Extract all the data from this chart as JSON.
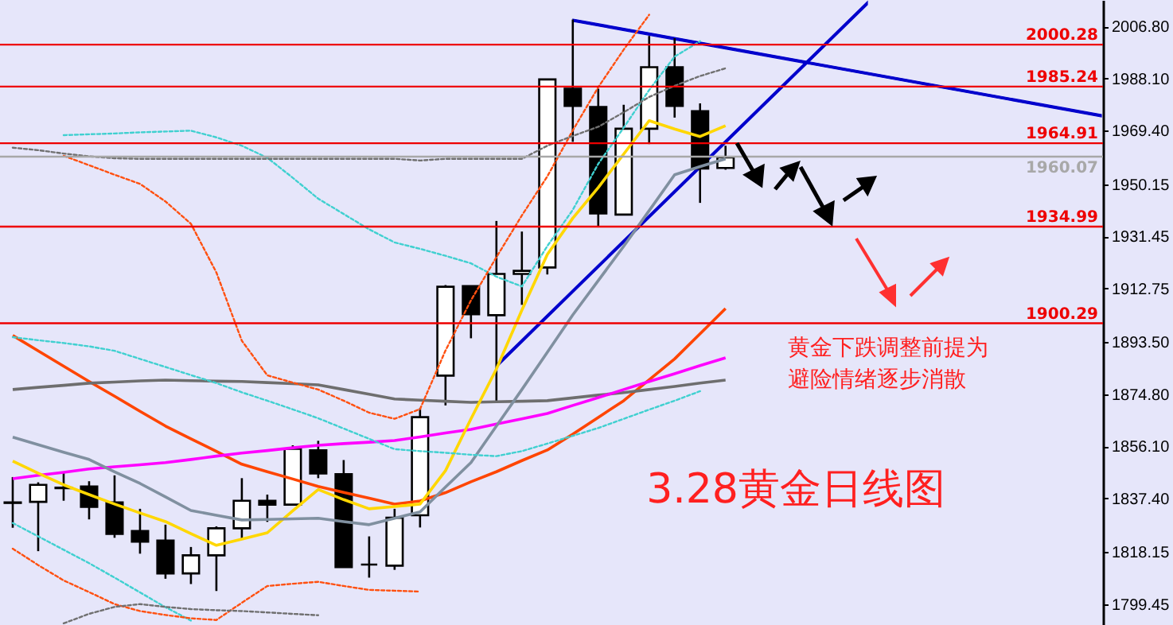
{
  "chart_data": {
    "type": "candlestick",
    "title": "3.28黄金日线图",
    "annotations": [
      "黄金下跌调整前提为避险情绪逐步消散"
    ],
    "categories": [
      null,
      null,
      null,
      null,
      null,
      null,
      null,
      null,
      null,
      null,
      null,
      null,
      null,
      null,
      null,
      null,
      null,
      null,
      null,
      null,
      null,
      null,
      null,
      null,
      null,
      null,
      null,
      null,
      null
    ],
    "ohlc": [
      [
        1835.8,
        1845.1,
        1826.9,
        1836.0
      ],
      [
        1836.2,
        1843.2,
        1818.5,
        1842.3
      ],
      [
        1841.1,
        1847.0,
        1836.6,
        1841.3
      ],
      [
        1841.7,
        1843.6,
        1829.9,
        1834.4
      ],
      [
        1836.0,
        1845.7,
        1823.3,
        1824.7
      ],
      [
        1825.7,
        1833.7,
        1817.6,
        1821.9
      ],
      [
        1822.3,
        1828.0,
        1808.6,
        1810.5
      ],
      [
        1810.5,
        1820.0,
        1806.7,
        1817.0
      ],
      [
        1817.0,
        1827.4,
        1804.2,
        1826.7
      ],
      [
        1826.7,
        1844.7,
        1822.9,
        1836.6
      ],
      [
        1836.6,
        1838.8,
        1829.0,
        1835.2
      ],
      [
        1835.2,
        1856.5,
        1835.2,
        1855.2
      ],
      [
        1854.7,
        1858.1,
        1844.7,
        1846.4
      ],
      [
        1846.1,
        1851.2,
        1812.8,
        1812.8
      ],
      [
        1813.7,
        1823.8,
        1809.0,
        1813.7
      ],
      [
        1813.3,
        1833.7,
        1811.8,
        1830.5
      ],
      [
        1831.4,
        1869.8,
        1827.0,
        1866.6
      ],
      [
        1881.5,
        1914.0,
        1870.8,
        1913.4
      ],
      [
        1913.6,
        1913.6,
        1894.9,
        1903.5
      ],
      [
        1903.2,
        1937.0,
        1871.8,
        1918.0
      ],
      [
        1918.0,
        1933.2,
        1906.9,
        1919.1
      ],
      [
        1920.3,
        1987.8,
        1917.8,
        1987.8
      ],
      [
        1984.5,
        2009.3,
        1965.4,
        1978.3
      ],
      [
        1977.9,
        1984.5,
        1934.9,
        1939.7
      ],
      [
        1939.3,
        1978.7,
        1939.3,
        1970.1
      ],
      [
        1970.1,
        2003.4,
        1964.6,
        1992.2
      ],
      [
        1992.2,
        2002.6,
        1974.1,
        1978.3
      ],
      [
        1976.4,
        1979.2,
        1943.5,
        1955.8
      ],
      [
        1956.0,
        1964.0,
        1955.4,
        1959.8
      ]
    ],
    "series": [
      {
        "type": "line",
        "color": "#ff4500",
        "line_style": "solid",
        "values": [
          1895.9,
          1890.4,
          1884.9,
          1879.4,
          1874.1,
          1868.7,
          1863.4,
          1858.8,
          1854.3,
          1849.7,
          1847.0,
          1844.4,
          1841.7,
          1839.6,
          1837.5,
          1835.4,
          1836.5,
          1839.5,
          1843.4,
          1847.0,
          1851.0,
          1854.8,
          1860.5,
          1866.5,
          1872.5,
          1880.0,
          1887.5,
          1896.5,
          1905.6
        ]
      },
      {
        "type": "line",
        "color": "#6e6e6e",
        "line_style": "solid",
        "values": [
          1876.5,
          1877.3,
          1878.0,
          1878.8,
          1879.2,
          1879.6,
          1879.9,
          1879.7,
          1879.5,
          1879.4,
          1879.0,
          1878.6,
          1878.2,
          1876.5,
          1874.8,
          1873.1,
          1872.7,
          1872.3,
          1871.9,
          1872.1,
          1872.3,
          1872.5,
          1873.5,
          1874.5,
          1875.4,
          1876.5,
          1877.6,
          1878.8,
          1879.9
        ]
      },
      {
        "type": "line",
        "color": "#ff00ff",
        "line_style": "solid",
        "values": [
          1844.5,
          1845.7,
          1846.8,
          1848.0,
          1848.8,
          1849.5,
          1850.3,
          1851.4,
          1852.6,
          1853.7,
          1854.6,
          1855.6,
          1856.5,
          1857.1,
          1857.6,
          1858.2,
          1859.5,
          1860.9,
          1862.2,
          1864.1,
          1866.0,
          1867.9,
          1870.8,
          1873.6,
          1876.5,
          1879.4,
          1882.2,
          1885.1,
          1887.9
        ]
      },
      {
        "type": "line",
        "color": "#ffd700",
        "line_style": "solid",
        "values": [
          1850.8,
          1846.5,
          1842.3,
          1838.8,
          1835.4,
          1832.2,
          1829.1,
          1824.8,
          1820.6,
          1822.8,
          1825.1,
          1833.0,
          1840.6,
          1837.0,
          1833.7,
          1834.5,
          1835.4,
          1847.4,
          1866.0,
          1883.9,
          1905.0,
          1925.0,
          1938.0,
          1949.0,
          1961.0,
          1973.0,
          1970.0,
          1967.3,
          1971.2
        ]
      },
      {
        "type": "line",
        "color": "#8090a0",
        "line_style": "solid",
        "values": [
          1859.4,
          1856.7,
          1854.0,
          1851.4,
          1847.0,
          1842.8,
          1838.0,
          1833.1,
          1831.4,
          1829.7,
          1829.9,
          1830.1,
          1830.3,
          1829.1,
          1828.0,
          1830.3,
          1832.6,
          1841.5,
          1850.3,
          1863.4,
          1876.5,
          1889.9,
          1903.3,
          1915.6,
          1927.9,
          1940.7,
          1953.6,
          1956.5,
          1959.3
        ]
      },
      {
        "type": "line",
        "color": "#40d0d0",
        "line_style": "dashed",
        "values": [
          null,
          null,
          1967.8,
          1968.1,
          1968.4,
          1968.8,
          1969.1,
          1969.4,
          1967.0,
          1964.0,
          1959.7,
          1952.5,
          1945.0,
          1939.5,
          1934.0,
          1929.3,
          1927.0,
          1924.5,
          1921.8,
          1917.0,
          1913.5,
          1928.0,
          1941.0,
          1957.5,
          1970.5,
          1984.0,
          1996.0,
          2001.5,
          null
        ]
      },
      {
        "type": "line",
        "color": "#40d0d0",
        "line_style": "dashed",
        "values": [
          1895.3,
          1894.2,
          1893.2,
          1892.0,
          1890.4,
          1887.5,
          1884.6,
          1881.7,
          1878.8,
          1875.5,
          1872.5,
          1869.4,
          1866.2,
          1862.5,
          1858.8,
          1855.1,
          1854.4,
          1853.8,
          1853.1,
          1852.6,
          1854.4,
          1857.1,
          1859.9,
          1862.7,
          1866.0,
          1869.3,
          1872.5,
          1875.9,
          null
        ]
      },
      {
        "type": "line",
        "color": "#40d0d0",
        "line_style": "dashed",
        "values": [
          1828.6,
          1823.8,
          1819.0,
          1814.2,
          1809.0,
          1803.7,
          1798.4,
          1793.6,
          null,
          null,
          null,
          null,
          null,
          null,
          null,
          null,
          null,
          null,
          null,
          null,
          null,
          null,
          null,
          null,
          null,
          null,
          null,
          null,
          null
        ]
      },
      {
        "type": "line",
        "color": "#ff5010",
        "line_style": "dashed",
        "values": [
          null,
          null,
          1960.4,
          1957.0,
          1953.6,
          1950.3,
          1944.0,
          1936.0,
          1918.5,
          1894.0,
          1881.6,
          1879.0,
          1876.5,
          1872.5,
          1868.2,
          1866.0,
          1869.5,
          1890.5,
          1908.5,
          1924.0,
          1939.0,
          1953.0,
          1969.5,
          1985.0,
          1998.5,
          2011.0,
          null,
          null,
          null
        ]
      },
      {
        "type": "line",
        "color": "#ff5010",
        "line_style": "dashed",
        "values": [
          1819.4,
          1813.5,
          1808.0,
          1803.8,
          1799.5,
          1797.0,
          1795.6,
          1794.4,
          1793.8,
          1800.0,
          1806.0,
          1806.8,
          1807.5,
          1806.0,
          1804.6,
          1804.3,
          1804.0,
          null,
          null,
          null,
          null,
          null,
          null,
          null,
          null,
          null,
          null,
          null,
          null
        ]
      },
      {
        "type": "line",
        "color": "#707070",
        "line_style": "dashed",
        "values": [
          1963.3,
          1962.4,
          1961.2,
          1960.2,
          1959.5,
          1959.3,
          1959.3,
          1959.3,
          1959.3,
          1959.3,
          1959.3,
          1959.3,
          1959.3,
          1959.3,
          1959.3,
          1959.3,
          1958.7,
          1959.3,
          1959.3,
          1959.3,
          1959.3,
          1964.0,
          1967.5,
          1970.8,
          1976.0,
          1981.5,
          1985.5,
          1989.0,
          1991.8
        ]
      },
      {
        "type": "line",
        "color": "#707070",
        "line_style": "dashed",
        "values": [
          null,
          null,
          1792.6,
          1796.0,
          1798.5,
          1799.5,
          1798.5,
          1797.7,
          1797.3,
          1797.0,
          1796.5,
          1796.0,
          1795.5,
          null,
          null,
          null,
          null,
          null,
          null,
          null,
          null,
          null,
          null,
          null,
          null,
          null,
          null,
          null,
          null
        ]
      }
    ],
    "ref_lines": [
      {
        "axis": "y",
        "value": 2000.28,
        "label": "2000.28",
        "color": "#ee0000"
      },
      {
        "axis": "y",
        "value": 1985.24,
        "label": "1985.24",
        "color": "#ee0000"
      },
      {
        "axis": "y",
        "value": 1964.91,
        "label": "1964.91",
        "color": "#ee0000"
      },
      {
        "axis": "y",
        "value": 1960.07,
        "label": "1960.07",
        "color": "#a8a8a8"
      },
      {
        "axis": "y",
        "value": 1934.99,
        "label": "1934.99",
        "color": "#ee0000"
      },
      {
        "axis": "y",
        "value": 1900.29,
        "label": "1900.29",
        "color": "#ee0000"
      }
    ],
    "ylim": [
      1792.0,
      2016.3
    ],
    "yticks": [
      {
        "value": 2006.8,
        "label": "2006.80"
      },
      {
        "value": 1988.1,
        "label": "1988.10"
      },
      {
        "value": 1969.4,
        "label": "1969.40"
      },
      {
        "value": 1950.15,
        "label": "1950.15"
      },
      {
        "value": 1931.45,
        "label": "1931.45"
      },
      {
        "value": 1912.75,
        "label": "1912.75"
      },
      {
        "value": 1893.5,
        "label": "1893.50"
      },
      {
        "value": 1874.8,
        "label": "1874.80"
      },
      {
        "value": 1856.1,
        "label": "1856.10"
      },
      {
        "value": 1837.4,
        "label": "1837.40"
      },
      {
        "value": 1818.15,
        "label": "1818.15"
      },
      {
        "value": 1799.45,
        "label": "1799.45"
      }
    ],
    "tick_labels": "y",
    "grid": false,
    "marker": "none"
  }
}
